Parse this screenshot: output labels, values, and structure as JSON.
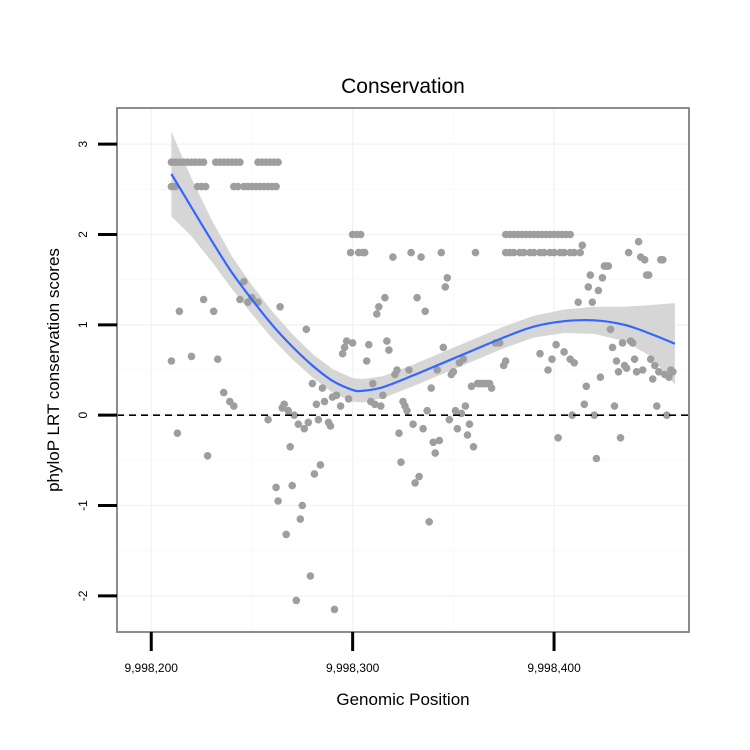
{
  "chart_data": {
    "type": "scatter",
    "title": "Conservation",
    "xlabel": "Genomic Position",
    "ylabel": "phyloP LRT conservation scores",
    "xlim": [
      9998183,
      9998467
    ],
    "ylim": [
      -2.4,
      3.4
    ],
    "x_ticks": [
      9998200,
      9998300,
      9998400
    ],
    "x_tick_labels": [
      "9,998,200",
      "9,998,300",
      "9,998,400"
    ],
    "y_ticks": [
      -2,
      -1,
      0,
      1,
      2,
      3
    ],
    "y_tick_labels": [
      "-2",
      "-1",
      "0",
      "1",
      "2",
      "3"
    ],
    "reference_line": {
      "y": 0,
      "style": "dashed"
    },
    "grid": true,
    "colors": {
      "points": "#9e9e9e",
      "smooth": "#3366ff",
      "band": "#d4d4d4",
      "reference": "#000000",
      "frame": "#7f7f7f"
    },
    "points": [
      [
        9998210,
        2.8
      ],
      [
        9998212,
        2.8
      ],
      [
        9998214,
        2.8
      ],
      [
        9998216,
        2.8
      ],
      [
        9998218,
        2.8
      ],
      [
        9998220,
        2.8
      ],
      [
        9998222,
        2.8
      ],
      [
        9998224,
        2.8
      ],
      [
        9998226,
        2.8
      ],
      [
        9998232,
        2.8
      ],
      [
        9998234,
        2.8
      ],
      [
        9998236,
        2.8
      ],
      [
        9998238,
        2.8
      ],
      [
        9998240,
        2.8
      ],
      [
        9998242,
        2.8
      ],
      [
        9998244,
        2.8
      ],
      [
        9998253,
        2.8
      ],
      [
        9998255,
        2.8
      ],
      [
        9998257,
        2.8
      ],
      [
        9998259,
        2.8
      ],
      [
        9998261,
        2.8
      ],
      [
        9998263,
        2.8
      ],
      [
        9998210,
        2.53
      ],
      [
        9998212,
        2.53
      ],
      [
        9998223,
        2.53
      ],
      [
        9998225,
        2.53
      ],
      [
        9998227,
        2.53
      ],
      [
        9998241,
        2.53
      ],
      [
        9998243,
        2.53
      ],
      [
        9998246,
        2.53
      ],
      [
        9998248,
        2.53
      ],
      [
        9998250,
        2.53
      ],
      [
        9998252,
        2.53
      ],
      [
        9998254,
        2.53
      ],
      [
        9998256,
        2.53
      ],
      [
        9998258,
        2.53
      ],
      [
        9998260,
        2.53
      ],
      [
        9998262,
        2.53
      ],
      [
        9998210,
        0.6
      ],
      [
        9998213,
        -0.2
      ],
      [
        9998214,
        1.15
      ],
      [
        9998220,
        0.65
      ],
      [
        9998226,
        1.28
      ],
      [
        9998228,
        -0.45
      ],
      [
        9998231,
        1.15
      ],
      [
        9998233,
        0.62
      ],
      [
        9998236,
        0.25
      ],
      [
        9998239,
        0.15
      ],
      [
        9998241,
        0.1
      ],
      [
        9998244,
        1.28
      ],
      [
        9998246,
        1.48
      ],
      [
        9998248,
        1.25
      ],
      [
        9998250,
        1.3
      ],
      [
        9998253,
        1.25
      ],
      [
        9998258,
        -0.05
      ],
      [
        9998262,
        -0.8
      ],
      [
        9998263,
        -0.95
      ],
      [
        9998264,
        1.2
      ],
      [
        9998265,
        0.08
      ],
      [
        9998266,
        0.12
      ],
      [
        9998267,
        -1.32
      ],
      [
        9998268,
        0.05
      ],
      [
        9998269,
        -0.35
      ],
      [
        9998270,
        -0.78
      ],
      [
        9998271,
        0.0
      ],
      [
        9998272,
        -2.05
      ],
      [
        9998273,
        -0.1
      ],
      [
        9998274,
        -1.15
      ],
      [
        9998275,
        -1.0
      ],
      [
        9998276,
        -0.15
      ],
      [
        9998277,
        0.95
      ],
      [
        9998278,
        -0.08
      ],
      [
        9998279,
        -1.78
      ],
      [
        9998280,
        0.35
      ],
      [
        9998281,
        -0.65
      ],
      [
        9998282,
        0.12
      ],
      [
        9998283,
        -0.05
      ],
      [
        9998284,
        -0.55
      ],
      [
        9998285,
        0.3
      ],
      [
        9998286,
        0.15
      ],
      [
        9998288,
        -0.08
      ],
      [
        9998289,
        -0.12
      ],
      [
        9998290,
        0.2
      ],
      [
        9998291,
        -2.15
      ],
      [
        9998292,
        0.22
      ],
      [
        9998294,
        0.1
      ],
      [
        9998295,
        0.68
      ],
      [
        9998296,
        0.75
      ],
      [
        9998297,
        0.82
      ],
      [
        9998298,
        0.18
      ],
      [
        9998300,
        0.8
      ],
      [
        9998300,
        2.0
      ],
      [
        9998302,
        2.0
      ],
      [
        9998304,
        2.0
      ],
      [
        9998299,
        1.8
      ],
      [
        9998303,
        1.8
      ],
      [
        9998305,
        1.8
      ],
      [
        9998306,
        1.8
      ],
      [
        9998307,
        0.6
      ],
      [
        9998308,
        0.78
      ],
      [
        9998309,
        0.15
      ],
      [
        9998310,
        0.35
      ],
      [
        9998311,
        0.12
      ],
      [
        9998312,
        1.12
      ],
      [
        9998313,
        1.2
      ],
      [
        9998314,
        0.1
      ],
      [
        9998315,
        0.22
      ],
      [
        9998316,
        1.3
      ],
      [
        9998317,
        0.82
      ],
      [
        9998318,
        0.72
      ],
      [
        9998320,
        1.75
      ],
      [
        9998321,
        0.45
      ],
      [
        9998322,
        0.5
      ],
      [
        9998323,
        -0.2
      ],
      [
        9998324,
        -0.52
      ],
      [
        9998325,
        0.15
      ],
      [
        9998326,
        0.1
      ],
      [
        9998327,
        0.05
      ],
      [
        9998328,
        0.5
      ],
      [
        9998329,
        1.8
      ],
      [
        9998330,
        -0.1
      ],
      [
        9998331,
        -0.75
      ],
      [
        9998332,
        1.3
      ],
      [
        9998333,
        -0.68
      ],
      [
        9998334,
        1.75
      ],
      [
        9998335,
        -0.15
      ],
      [
        9998336,
        1.15
      ],
      [
        9998337,
        0.05
      ],
      [
        9998338,
        -1.18
      ],
      [
        9998339,
        0.3
      ],
      [
        9998340,
        -0.3
      ],
      [
        9998341,
        -0.42
      ],
      [
        9998342,
        0.5
      ],
      [
        9998343,
        -0.28
      ],
      [
        9998344,
        1.8
      ],
      [
        9998345,
        0.75
      ],
      [
        9998346,
        1.42
      ],
      [
        9998347,
        1.52
      ],
      [
        9998348,
        -0.05
      ],
      [
        9998349,
        0.45
      ],
      [
        9998350,
        0.48
      ],
      [
        9998351,
        0.05
      ],
      [
        9998352,
        -0.15
      ],
      [
        9998353,
        0.58
      ],
      [
        9998354,
        0.02
      ],
      [
        9998355,
        0.62
      ],
      [
        9998356,
        0.1
      ],
      [
        9998357,
        -0.22
      ],
      [
        9998358,
        -0.1
      ],
      [
        9998359,
        0.32
      ],
      [
        9998360,
        -0.35
      ],
      [
        9998361,
        1.8
      ],
      [
        9998362,
        0.35
      ],
      [
        9998363,
        0.35
      ],
      [
        9998364,
        0.35
      ],
      [
        9998365,
        0.35
      ],
      [
        9998366,
        0.35
      ],
      [
        9998367,
        0.35
      ],
      [
        9998368,
        0.35
      ],
      [
        9998369,
        0.3
      ],
      [
        9998371,
        0.8
      ],
      [
        9998373,
        0.8
      ],
      [
        9998375,
        0.55
      ],
      [
        9998376,
        0.6
      ],
      [
        9998376,
        2.0
      ],
      [
        9998378,
        2.0
      ],
      [
        9998380,
        2.0
      ],
      [
        9998382,
        2.0
      ],
      [
        9998384,
        2.0
      ],
      [
        9998386,
        2.0
      ],
      [
        9998388,
        2.0
      ],
      [
        9998390,
        2.0
      ],
      [
        9998392,
        2.0
      ],
      [
        9998394,
        2.0
      ],
      [
        9998396,
        2.0
      ],
      [
        9998398,
        2.0
      ],
      [
        9998400,
        2.0
      ],
      [
        9998402,
        2.0
      ],
      [
        9998404,
        2.0
      ],
      [
        9998406,
        2.0
      ],
      [
        9998408,
        2.0
      ],
      [
        9998376,
        1.8
      ],
      [
        9998378,
        1.8
      ],
      [
        9998380,
        1.8
      ],
      [
        9998383,
        1.8
      ],
      [
        9998385,
        1.8
      ],
      [
        9998388,
        1.8
      ],
      [
        9998390,
        1.8
      ],
      [
        9998393,
        1.8
      ],
      [
        9998395,
        1.8
      ],
      [
        9998398,
        1.8
      ],
      [
        9998400,
        1.8
      ],
      [
        9998403,
        1.8
      ],
      [
        9998405,
        1.8
      ],
      [
        9998408,
        1.8
      ],
      [
        9998410,
        1.8
      ],
      [
        9998413,
        1.8
      ],
      [
        9998393,
        0.68
      ],
      [
        9998397,
        0.5
      ],
      [
        9998399,
        0.62
      ],
      [
        9998401,
        0.78
      ],
      [
        9998402,
        -0.25
      ],
      [
        9998405,
        0.7
      ],
      [
        9998408,
        0.62
      ],
      [
        9998409,
        0.0
      ],
      [
        9998410,
        0.58
      ],
      [
        9998412,
        1.25
      ],
      [
        9998414,
        1.88
      ],
      [
        9998415,
        0.12
      ],
      [
        9998416,
        0.32
      ],
      [
        9998417,
        1.42
      ],
      [
        9998418,
        1.55
      ],
      [
        9998419,
        1.25
      ],
      [
        9998420,
        0.0
      ],
      [
        9998421,
        -0.48
      ],
      [
        9998422,
        1.38
      ],
      [
        9998423,
        0.42
      ],
      [
        9998424,
        1.52
      ],
      [
        9998425,
        1.65
      ],
      [
        9998426,
        1.65
      ],
      [
        9998427,
        1.65
      ],
      [
        9998428,
        0.95
      ],
      [
        9998429,
        0.75
      ],
      [
        9998430,
        0.1
      ],
      [
        9998431,
        0.6
      ],
      [
        9998432,
        0.48
      ],
      [
        9998433,
        -0.25
      ],
      [
        9998434,
        0.8
      ],
      [
        9998435,
        0.55
      ],
      [
        9998436,
        0.52
      ],
      [
        9998437,
        1.8
      ],
      [
        9998438,
        0.82
      ],
      [
        9998439,
        0.8
      ],
      [
        9998440,
        0.62
      ],
      [
        9998441,
        0.48
      ],
      [
        9998442,
        1.92
      ],
      [
        9998443,
        1.75
      ],
      [
        9998444,
        0.5
      ],
      [
        9998445,
        1.72
      ],
      [
        9998446,
        1.55
      ],
      [
        9998447,
        1.55
      ],
      [
        9998448,
        0.62
      ],
      [
        9998449,
        0.4
      ],
      [
        9998450,
        0.55
      ],
      [
        9998451,
        0.1
      ],
      [
        9998452,
        0.48
      ],
      [
        9998453,
        1.72
      ],
      [
        9998454,
        1.72
      ],
      [
        9998455,
        0.45
      ],
      [
        9998456,
        0.0
      ],
      [
        9998457,
        0.42
      ],
      [
        9998458,
        0.5
      ],
      [
        9998459,
        0.48
      ]
    ],
    "smooth": [
      {
        "x": 9998210,
        "y": 2.67,
        "lo": 2.2,
        "hi": 3.14
      },
      {
        "x": 9998220,
        "y": 2.3,
        "lo": 1.98,
        "hi": 2.62
      },
      {
        "x": 9998230,
        "y": 1.93,
        "lo": 1.7,
        "hi": 2.16
      },
      {
        "x": 9998240,
        "y": 1.58,
        "lo": 1.4,
        "hi": 1.76
      },
      {
        "x": 9998250,
        "y": 1.28,
        "lo": 1.12,
        "hi": 1.44
      },
      {
        "x": 9998260,
        "y": 1.0,
        "lo": 0.85,
        "hi": 1.15
      },
      {
        "x": 9998270,
        "y": 0.76,
        "lo": 0.62,
        "hi": 0.9
      },
      {
        "x": 9998280,
        "y": 0.55,
        "lo": 0.42,
        "hi": 0.68
      },
      {
        "x": 9998290,
        "y": 0.38,
        "lo": 0.25,
        "hi": 0.51
      },
      {
        "x": 9998300,
        "y": 0.28,
        "lo": 0.15,
        "hi": 0.41
      },
      {
        "x": 9998305,
        "y": 0.27,
        "lo": 0.14,
        "hi": 0.4
      },
      {
        "x": 9998315,
        "y": 0.31,
        "lo": 0.19,
        "hi": 0.43
      },
      {
        "x": 9998330,
        "y": 0.44,
        "lo": 0.32,
        "hi": 0.56
      },
      {
        "x": 9998345,
        "y": 0.58,
        "lo": 0.46,
        "hi": 0.7
      },
      {
        "x": 9998360,
        "y": 0.72,
        "lo": 0.6,
        "hi": 0.84
      },
      {
        "x": 9998375,
        "y": 0.86,
        "lo": 0.74,
        "hi": 0.98
      },
      {
        "x": 9998390,
        "y": 0.98,
        "lo": 0.86,
        "hi": 1.1
      },
      {
        "x": 9998405,
        "y": 1.04,
        "lo": 0.91,
        "hi": 1.17
      },
      {
        "x": 9998420,
        "y": 1.05,
        "lo": 0.9,
        "hi": 1.2
      },
      {
        "x": 9998435,
        "y": 1.0,
        "lo": 0.82,
        "hi": 1.2
      },
      {
        "x": 9998448,
        "y": 0.9,
        "lo": 0.65,
        "hi": 1.22
      },
      {
        "x": 9998460,
        "y": 0.79,
        "lo": 0.34,
        "hi": 1.24
      }
    ]
  }
}
